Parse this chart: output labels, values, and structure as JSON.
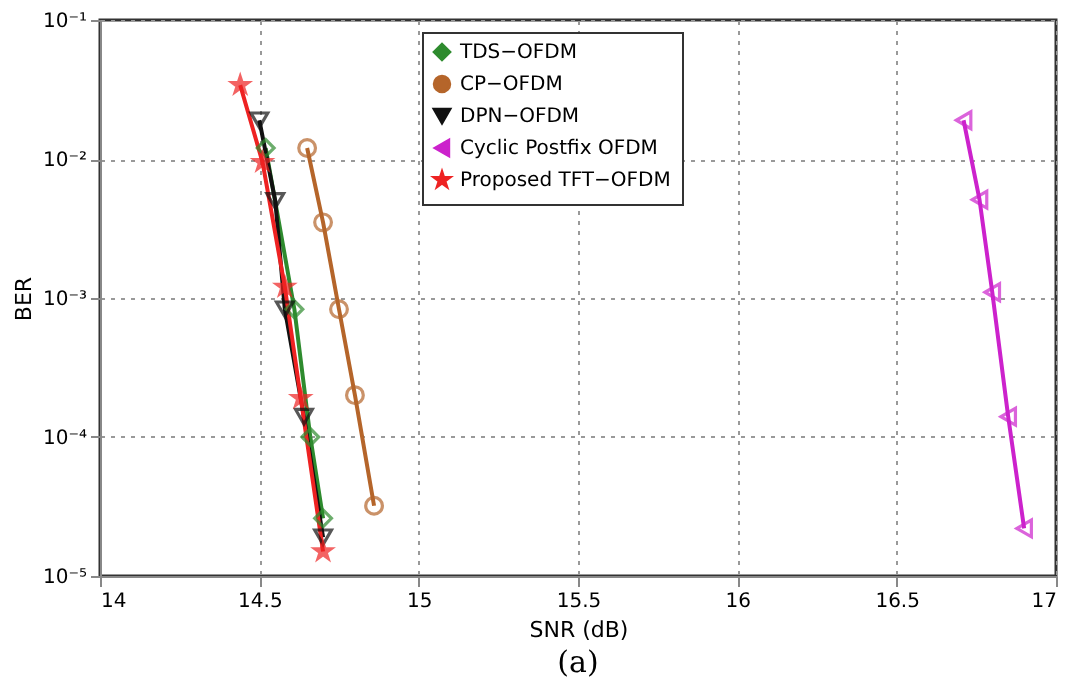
{
  "chart_data": {
    "type": "line",
    "xlabel": "SNR (dB)",
    "ylabel": "BER",
    "annotations": [
      "(a)"
    ],
    "xlim": [
      14,
      17
    ],
    "xticks": [
      14,
      14.5,
      15,
      15.5,
      16,
      16.5,
      17
    ],
    "ylim": [
      1e-05,
      0.1
    ],
    "yticks": [
      {
        "value": 0.1,
        "label": "10⁻¹"
      },
      {
        "value": 0.01,
        "label": "10⁻²"
      },
      {
        "value": 0.001,
        "label": "10⁻³"
      },
      {
        "value": 0.0001,
        "label": "10⁻⁴"
      },
      {
        "value": 1e-05,
        "label": "10⁻⁵"
      }
    ],
    "log": "y",
    "grid": true,
    "legend": "top",
    "line_style": "solid",
    "series": [
      {
        "name": "TDS−OFDM",
        "color": "#2e8b2e",
        "marker": "diamond",
        "x": [
          14.52,
          14.61,
          14.66,
          14.7
        ],
        "values": [
          0.012,
          0.00083,
          0.0001,
          2.6e-05
        ]
      },
      {
        "name": "CP−OFDM",
        "color": "#b5652a",
        "marker": "circle",
        "x": [
          14.65,
          14.7,
          14.75,
          14.8,
          14.86
        ],
        "values": [
          0.012,
          0.0035,
          0.00083,
          0.0002,
          3.2e-05
        ]
      },
      {
        "name": "DPN−OFDM",
        "color": "#111111",
        "marker": "triangle",
        "x": [
          14.5,
          14.55,
          14.58,
          14.64,
          14.7
        ],
        "values": [
          0.019,
          0.005,
          0.00083,
          0.00014,
          1.9e-05
        ]
      },
      {
        "name": "Cyclic Postfix OFDM",
        "color": "#cc22cc",
        "marker": "triangle",
        "x": [
          16.71,
          16.76,
          16.8,
          16.85,
          16.9
        ],
        "values": [
          0.019,
          0.0051,
          0.0011,
          0.00014,
          2.2e-05
        ]
      },
      {
        "name": "Proposed TFT−OFDM",
        "color": "#ee2222",
        "marker": "star",
        "x": [
          14.44,
          14.51,
          14.58,
          14.63,
          14.7
        ],
        "values": [
          0.034,
          0.0095,
          0.0012,
          0.00019,
          1.5e-05
        ]
      }
    ]
  }
}
